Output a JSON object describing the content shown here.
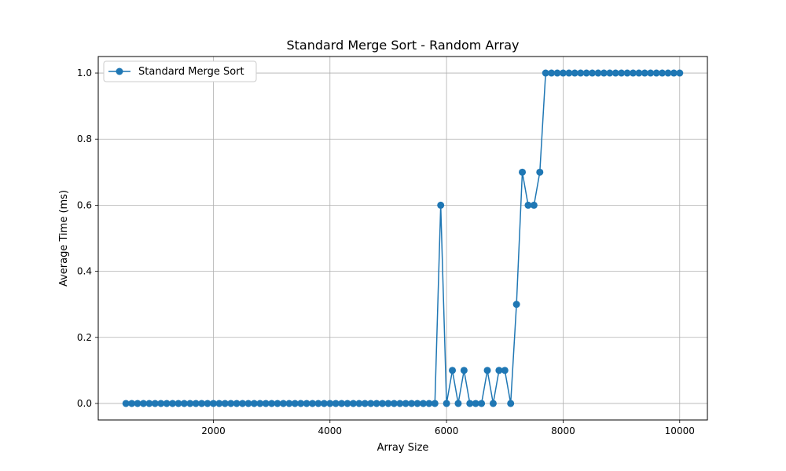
{
  "chart_data": {
    "type": "line",
    "title": "Standard Merge Sort - Random Array",
    "xlabel": "Array Size",
    "ylabel": "Average Time (ms)",
    "xlim": [
      25,
      10475
    ],
    "ylim": [
      -0.05,
      1.05
    ],
    "xticks": [
      2000,
      4000,
      6000,
      8000,
      10000
    ],
    "xtick_labels": [
      "2000",
      "4000",
      "6000",
      "8000",
      "10000"
    ],
    "yticks": [
      0.0,
      0.2,
      0.4,
      0.6,
      0.8,
      1.0
    ],
    "ytick_labels": [
      "0.0",
      "0.2",
      "0.4",
      "0.6",
      "0.8",
      "1.0"
    ],
    "grid": true,
    "legend_position": "top-left",
    "series": [
      {
        "name": "Standard Merge Sort",
        "color": "#1f77b4",
        "marker": "circle",
        "x": [
          500,
          600,
          700,
          800,
          900,
          1000,
          1100,
          1200,
          1300,
          1400,
          1500,
          1600,
          1700,
          1800,
          1900,
          2000,
          2100,
          2200,
          2300,
          2400,
          2500,
          2600,
          2700,
          2800,
          2900,
          3000,
          3100,
          3200,
          3300,
          3400,
          3500,
          3600,
          3700,
          3800,
          3900,
          4000,
          4100,
          4200,
          4300,
          4400,
          4500,
          4600,
          4700,
          4800,
          4900,
          5000,
          5100,
          5200,
          5300,
          5400,
          5500,
          5600,
          5700,
          5800,
          5900,
          6000,
          6100,
          6200,
          6300,
          6400,
          6500,
          6600,
          6700,
          6800,
          6900,
          7000,
          7100,
          7200,
          7300,
          7400,
          7500,
          7600,
          7700,
          7800,
          7900,
          8000,
          8100,
          8200,
          8300,
          8400,
          8500,
          8600,
          8700,
          8800,
          8900,
          9000,
          9100,
          9200,
          9300,
          9400,
          9500,
          9600,
          9700,
          9800,
          9900,
          10000
        ],
        "y": [
          0,
          0,
          0,
          0,
          0,
          0,
          0,
          0,
          0,
          0,
          0,
          0,
          0,
          0,
          0,
          0,
          0,
          0,
          0,
          0,
          0,
          0,
          0,
          0,
          0,
          0,
          0,
          0,
          0,
          0,
          0,
          0,
          0,
          0,
          0,
          0,
          0,
          0,
          0,
          0,
          0,
          0,
          0,
          0,
          0,
          0,
          0,
          0,
          0,
          0,
          0,
          0,
          0,
          0,
          0.6,
          0,
          0.1,
          0,
          0.1,
          0,
          0,
          0,
          0.1,
          0,
          0.1,
          0.1,
          0,
          0.3,
          0.7,
          0.6,
          0.6,
          0.7,
          1,
          1,
          1,
          1,
          1,
          1,
          1,
          1,
          1,
          1,
          1,
          1,
          1,
          1,
          1,
          1,
          1,
          1,
          1,
          1,
          1,
          1,
          1,
          1
        ]
      }
    ]
  }
}
